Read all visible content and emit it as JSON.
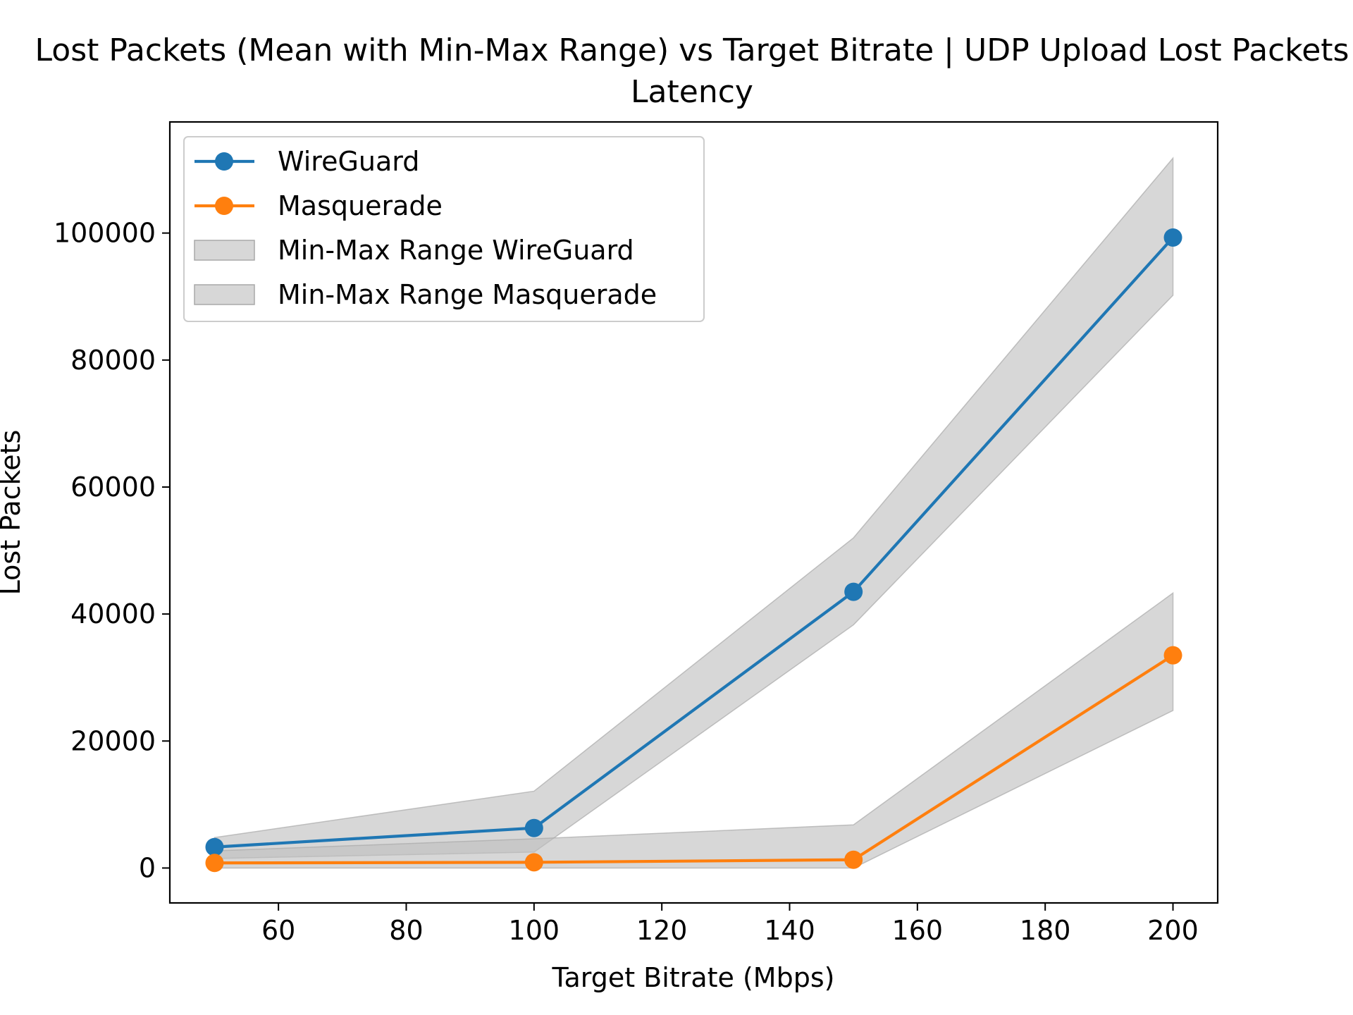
{
  "chart_data": {
    "type": "line",
    "title": "Lost Packets (Mean with Min-Max Range) vs Target Bitrate | UDP Upload Lost Packets",
    "title_line2": "Latency",
    "xlabel": "Target Bitrate (Mbps)",
    "ylabel": "Lost Packets",
    "xlim": [
      43,
      207
    ],
    "ylim": [
      -5500,
      117500
    ],
    "xticks": [
      60,
      80,
      100,
      120,
      140,
      160,
      180,
      200
    ],
    "yticks": [
      0,
      20000,
      40000,
      60000,
      80000,
      100000
    ],
    "grid": false,
    "legend_placement": "top-left",
    "series": [
      {
        "name": "WireGuard",
        "color": "#1f77b4",
        "marker": "circle",
        "x": [
          50,
          100,
          150,
          200
        ],
        "y": [
          3300,
          6300,
          43500,
          99300
        ]
      },
      {
        "name": "Masquerade",
        "color": "#ff7f0e",
        "marker": "circle",
        "x": [
          50,
          100,
          150,
          200
        ],
        "y": [
          800,
          900,
          1300,
          33500
        ]
      }
    ],
    "bands": [
      {
        "name": "Min-Max Range WireGuard",
        "color": "#bfbfbf",
        "x": [
          50,
          100,
          150,
          200
        ],
        "min": [
          1500,
          2500,
          38300,
          90200
        ],
        "max": [
          4800,
          12100,
          52000,
          111800
        ]
      },
      {
        "name": "Min-Max Range Masquerade",
        "color": "#bfbfbf",
        "x": [
          50,
          100,
          150,
          200
        ],
        "min": [
          0,
          0,
          0,
          24800
        ],
        "max": [
          2700,
          4600,
          6800,
          43300
        ]
      }
    ]
  }
}
